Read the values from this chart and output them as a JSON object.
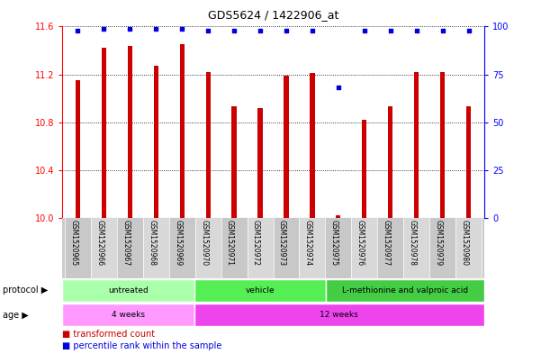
{
  "title": "GDS5624 / 1422906_at",
  "samples": [
    "GSM1520965",
    "GSM1520966",
    "GSM1520967",
    "GSM1520968",
    "GSM1520969",
    "GSM1520970",
    "GSM1520971",
    "GSM1520972",
    "GSM1520973",
    "GSM1520974",
    "GSM1520975",
    "GSM1520976",
    "GSM1520977",
    "GSM1520978",
    "GSM1520979",
    "GSM1520980"
  ],
  "transformed_count": [
    11.15,
    11.42,
    11.44,
    11.27,
    11.45,
    11.22,
    10.93,
    10.92,
    11.19,
    11.21,
    10.02,
    10.82,
    10.93,
    11.22,
    11.22,
    10.93
  ],
  "percentile_rank": [
    98,
    99,
    99,
    99,
    99,
    98,
    98,
    98,
    98,
    98,
    68,
    98,
    98,
    98,
    98,
    98
  ],
  "ylim_left": [
    10,
    11.6
  ],
  "ylim_right": [
    0,
    100
  ],
  "yticks_left": [
    10,
    10.4,
    10.8,
    11.2,
    11.6
  ],
  "yticks_right": [
    0,
    25,
    50,
    75,
    100
  ],
  "bar_color": "#CC0000",
  "dot_color": "#0000DD",
  "protocol_groups": [
    {
      "label": "untreated",
      "start": 0,
      "end": 5,
      "color": "#AAFFAA"
    },
    {
      "label": "vehicle",
      "start": 5,
      "end": 10,
      "color": "#55EE55"
    },
    {
      "label": "L-methionine and valproic acid",
      "start": 10,
      "end": 16,
      "color": "#44CC44"
    }
  ],
  "age_groups": [
    {
      "label": "4 weeks",
      "start": 0,
      "end": 5,
      "color": "#FF99FF"
    },
    {
      "label": "12 weeks",
      "start": 5,
      "end": 16,
      "color": "#EE44EE"
    }
  ],
  "legend_red_label": "transformed count",
  "legend_blue_label": "percentile rank within the sample",
  "xlabel_protocol": "protocol",
  "xlabel_age": "age",
  "bg_color": "#FFFFFF",
  "col_colors": [
    "#C8C8C8",
    "#D8D8D8"
  ],
  "bar_width": 0.18
}
